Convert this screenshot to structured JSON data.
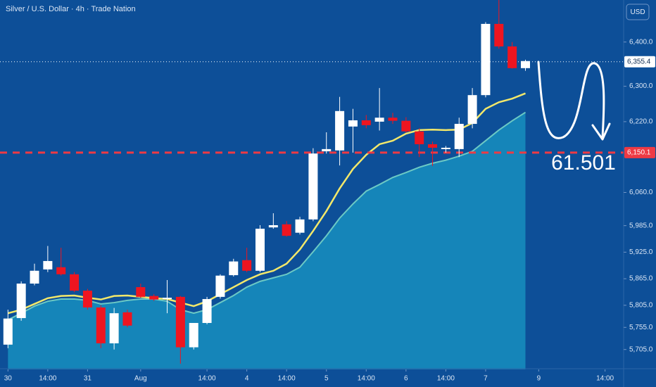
{
  "chart_data": {
    "type": "candlestick",
    "title": "Silver / U.S. Dollar · 4h · Trade Nation",
    "currency": "USD",
    "annotation": "61.501",
    "background": "#0d4f98",
    "up_color": "#ffffff",
    "down_color": "#ee1520",
    "x": [
      0,
      1,
      2,
      3,
      4,
      5,
      6,
      7,
      8,
      9,
      10,
      11,
      12,
      13,
      14,
      15,
      16,
      17,
      18,
      19,
      20,
      21,
      22,
      23,
      24,
      25,
      26,
      27,
      28,
      29,
      30,
      31,
      32,
      33,
      34,
      35,
      36,
      37,
      38,
      39
    ],
    "open": [
      5716,
      5776,
      5854,
      5886,
      5891,
      5875,
      5838,
      5800,
      5719,
      5789,
      5846,
      5826,
      5819,
      5824,
      5710,
      5765,
      5824,
      5873,
      5907,
      5883,
      5981,
      5988,
      5969,
      5999,
      6153,
      6155,
      6209,
      6223,
      6220,
      6229,
      6222,
      6198,
      6169,
      6158,
      6158,
      6215,
      6280,
      6441,
      6390,
      6341
    ],
    "high": [
      5795,
      5859,
      5899,
      5939,
      5935,
      5880,
      5842,
      5805,
      5799,
      5795,
      5854,
      5830,
      5862,
      5826,
      5765,
      5824,
      5875,
      5910,
      5935,
      5986,
      6013,
      5995,
      6005,
      6160,
      6196,
      6276,
      6249,
      6235,
      6296,
      6240,
      6230,
      6205,
      6175,
      6165,
      6229,
      6296,
      6445,
      6495,
      6400,
      6360
    ],
    "low": [
      5708,
      5770,
      5850,
      5880,
      5872,
      5835,
      5795,
      5708,
      5705,
      5755,
      5822,
      5815,
      5787,
      5673,
      5705,
      5762,
      5820,
      5870,
      5880,
      5880,
      5978,
      5960,
      5965,
      5995,
      6148,
      6121,
      6150,
      6205,
      6200,
      6215,
      6195,
      6140,
      6120,
      6150,
      6140,
      6205,
      6275,
      6385,
      6340,
      6335
    ],
    "close": [
      5775,
      5854,
      5883,
      5905,
      5875,
      5838,
      5800,
      5719,
      5787,
      5759,
      5824,
      5818,
      5822,
      5710,
      5765,
      5819,
      5872,
      5904,
      5883,
      5978,
      5986,
      5962,
      5999,
      6148,
      6158,
      6244,
      6223,
      6212,
      6229,
      6222,
      6198,
      6169,
      6161,
      6161,
      6215,
      6280,
      6441,
      6390,
      6341,
      6357
    ],
    "ma": {
      "color": "#f3e86a",
      "values": [
        5787,
        5795,
        5808,
        5821,
        5826,
        5827,
        5822,
        5818,
        5826,
        5827,
        5824,
        5821,
        5819,
        5811,
        5803,
        5814,
        5830,
        5846,
        5862,
        5875,
        5883,
        5899,
        5931,
        5973,
        6018,
        6069,
        6113,
        6145,
        6169,
        6177,
        6193,
        6201,
        6202,
        6201,
        6202,
        6217,
        6249,
        6264,
        6272,
        6284
      ]
    },
    "area": {
      "color": "#1585b9",
      "line_color": "#6cc9c4",
      "values": [
        5772,
        5787,
        5803,
        5814,
        5819,
        5819,
        5816,
        5808,
        5811,
        5816,
        5819,
        5819,
        5814,
        5795,
        5787,
        5795,
        5811,
        5827,
        5846,
        5859,
        5867,
        5875,
        5891,
        5926,
        5962,
        6002,
        6034,
        6063,
        6078,
        6094,
        6105,
        6117,
        6126,
        6133,
        6142,
        6153,
        6177,
        6201,
        6222,
        6241
      ]
    },
    "levels": [
      {
        "value": 6355.4,
        "label": "6,355.4",
        "color": "#ffffff",
        "style": "dotted"
      },
      {
        "value": 6150.1,
        "label": "6,150.1",
        "color": "#ee3a44",
        "style": "dashed"
      }
    ],
    "xlim": [
      -0.6,
      46.4
    ],
    "xticks": [
      {
        "value": 0,
        "label": "30"
      },
      {
        "value": 3,
        "label": "14:00"
      },
      {
        "value": 6,
        "label": "31"
      },
      {
        "value": 10,
        "label": "Aug"
      },
      {
        "value": 15,
        "label": "14:00"
      },
      {
        "value": 18,
        "label": "4"
      },
      {
        "value": 21,
        "label": "14:00"
      },
      {
        "value": 24,
        "label": "5"
      },
      {
        "value": 27,
        "label": "14:00"
      },
      {
        "value": 30,
        "label": "6"
      },
      {
        "value": 33,
        "label": "14:00"
      },
      {
        "value": 36,
        "label": "7"
      },
      {
        "value": 40,
        "label": "9"
      },
      {
        "value": 45,
        "label": "14:00"
      }
    ],
    "ylim": [
      5660,
      6495
    ],
    "yticks": [
      {
        "value": 5705,
        "label": "5,705.0"
      },
      {
        "value": 5755,
        "label": "5,755.0"
      },
      {
        "value": 5805,
        "label": "5,805.0"
      },
      {
        "value": 5865,
        "label": "5,865.0"
      },
      {
        "value": 5925,
        "label": "5,925.0"
      },
      {
        "value": 5985,
        "label": "5,985.0"
      },
      {
        "value": 6060,
        "label": "6,060.0"
      },
      {
        "value": 6220,
        "label": "6,220.0"
      },
      {
        "value": 6300,
        "label": "6,300.0"
      },
      {
        "value": 6400,
        "label": "6,400.0"
      }
    ]
  }
}
